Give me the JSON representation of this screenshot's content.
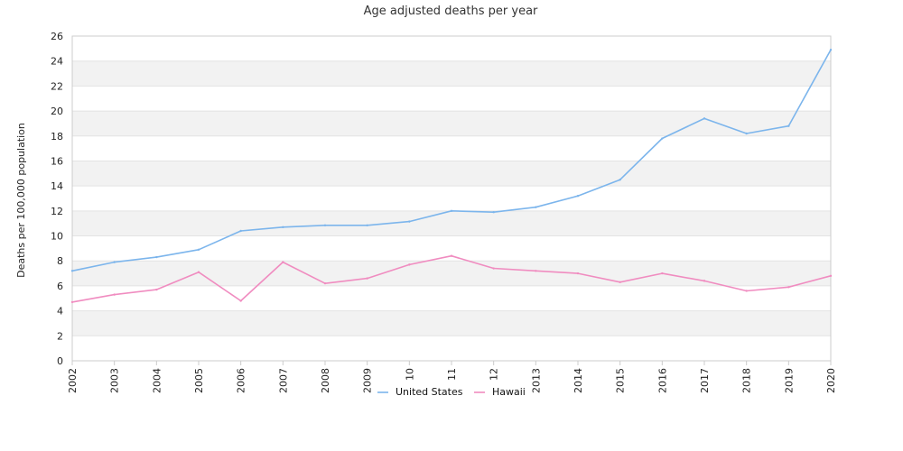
{
  "chart_data": {
    "type": "line",
    "title": "Age adjusted deaths per year",
    "xlabel": "",
    "ylabel": "Deaths per 100,000 population",
    "ylim": [
      0,
      26
    ],
    "y_ticks": [
      0,
      2,
      4,
      6,
      8,
      10,
      12,
      14,
      16,
      18,
      20,
      22,
      24,
      26
    ],
    "grid": "alternating horizontal bands",
    "legend": "bottom-center",
    "categories": [
      "2002",
      "2003",
      "2004",
      "2005",
      "2006",
      "2007",
      "2008",
      "2009",
      "10",
      "11",
      "12",
      "2013",
      "2014",
      "2015",
      "2016",
      "2017",
      "2018",
      "2019",
      "2020"
    ],
    "series": [
      {
        "name": "United States",
        "color": "#7cb5ec",
        "values": [
          7.2,
          7.9,
          8.3,
          8.9,
          10.4,
          10.7,
          10.85,
          10.85,
          11.15,
          12.0,
          11.9,
          12.3,
          13.2,
          14.5,
          17.8,
          19.4,
          18.2,
          18.8,
          24.9
        ]
      },
      {
        "name": "Hawaii",
        "color": "#f08cc0",
        "values": [
          4.7,
          5.3,
          5.7,
          7.1,
          4.8,
          7.9,
          6.2,
          6.6,
          7.7,
          8.4,
          7.4,
          7.2,
          7.0,
          6.3,
          7.0,
          6.4,
          5.6,
          5.9,
          6.8
        ]
      }
    ]
  }
}
